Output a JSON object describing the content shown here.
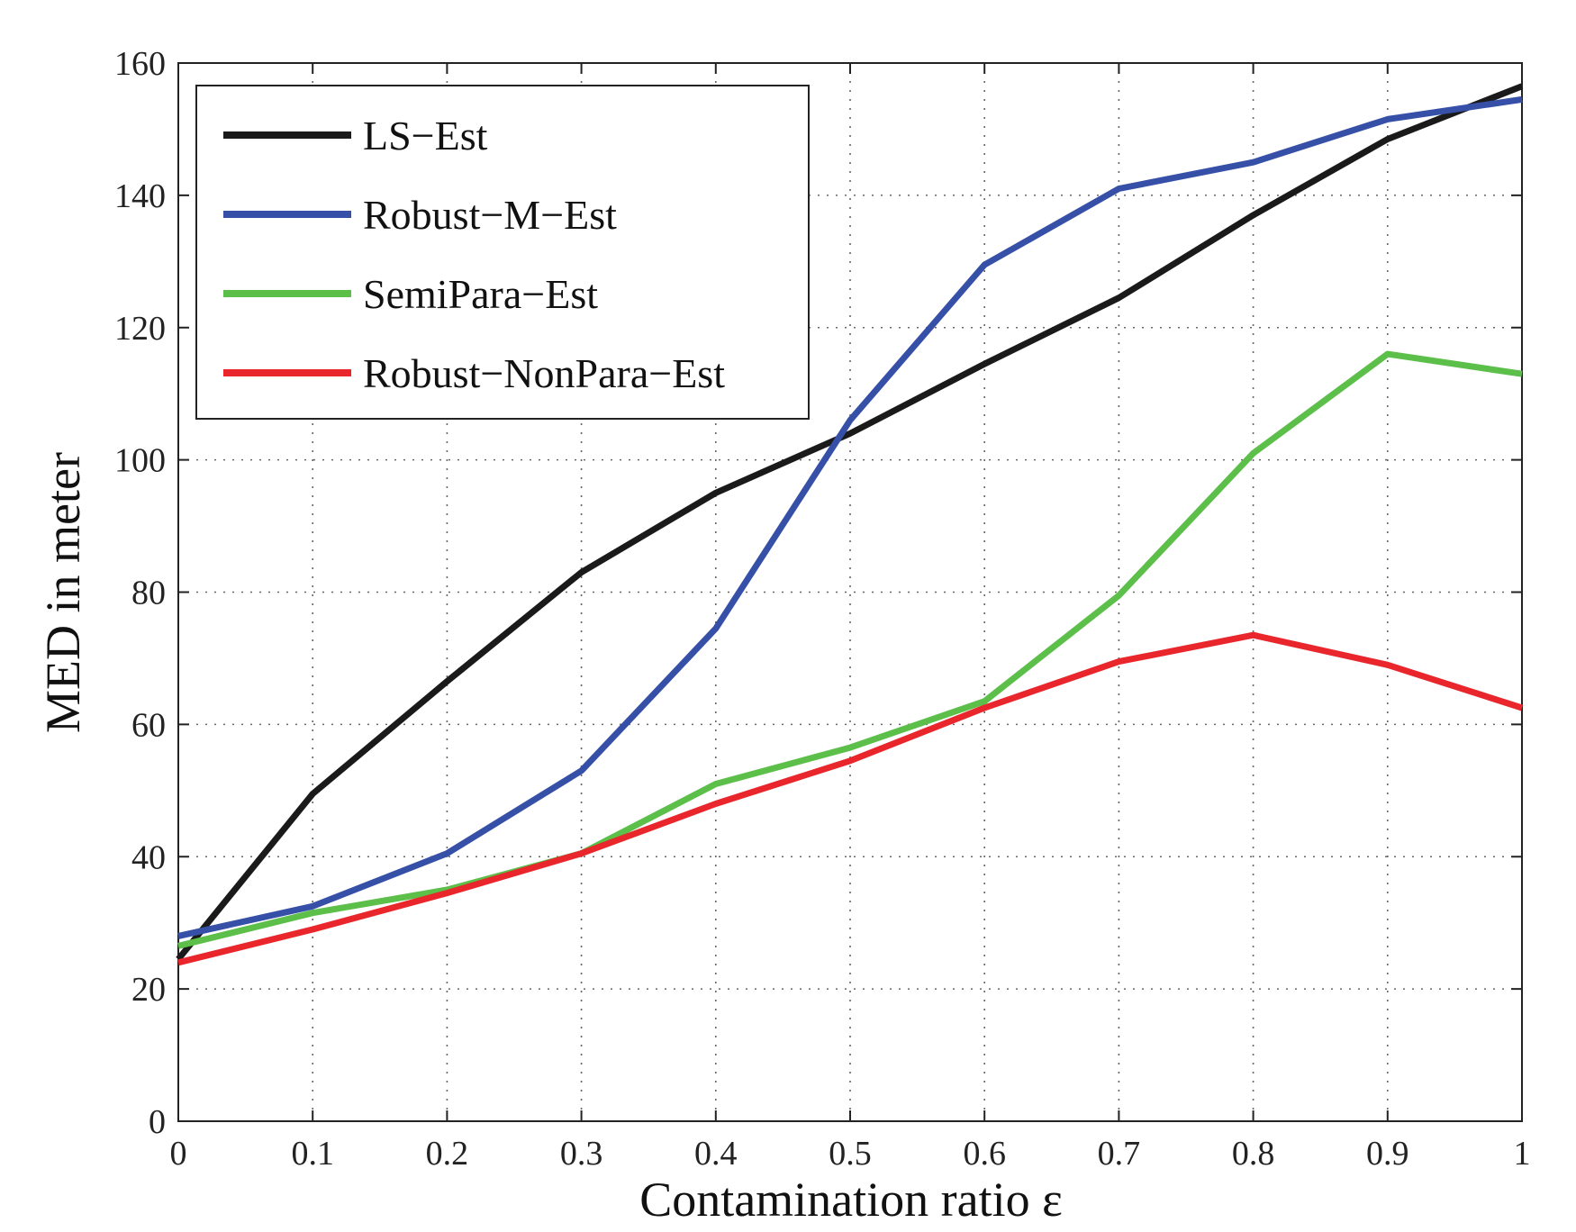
{
  "chart_data": {
    "type": "line",
    "title": "",
    "xlabel": "Contamination ratio ε",
    "ylabel": "MED in meter",
    "xlim": [
      0,
      1
    ],
    "ylim": [
      0,
      160
    ],
    "xticks": [
      0,
      0.1,
      0.2,
      0.3,
      0.4,
      0.5,
      0.6,
      0.7,
      0.8,
      0.9,
      1
    ],
    "xtick_labels": [
      "0",
      "0.1",
      "0.2",
      "0.3",
      "0.4",
      "0.5",
      "0.6",
      "0.7",
      "0.8",
      "0.9",
      "1"
    ],
    "yticks": [
      0,
      20,
      40,
      60,
      80,
      100,
      120,
      140,
      160
    ],
    "ytick_labels": [
      "0",
      "20",
      "40",
      "60",
      "80",
      "100",
      "120",
      "140",
      "160"
    ],
    "grid": true,
    "legend_position": "top-left",
    "x": [
      0,
      0.1,
      0.2,
      0.3,
      0.4,
      0.5,
      0.6,
      0.7,
      0.8,
      0.9,
      1
    ],
    "series": [
      {
        "name": "LS−Est",
        "color": "#1a1a1a",
        "values": [
          24.5,
          49.5,
          66.5,
          83,
          95,
          104,
          114.5,
          124.5,
          137,
          148.5,
          156.5
        ]
      },
      {
        "name": "Robust−M−Est",
        "color": "#3650a8",
        "values": [
          28,
          32.5,
          40.5,
          53,
          74.5,
          106,
          129.5,
          141,
          145,
          151.5,
          154.5
        ]
      },
      {
        "name": "SemiPara−Est",
        "color": "#5cbf4a",
        "values": [
          26.5,
          31.5,
          35,
          40.5,
          51,
          56.5,
          63.5,
          79.5,
          101,
          116,
          113
        ]
      },
      {
        "name": "Robust−NonPara−Est",
        "color": "#e8262b",
        "values": [
          24,
          29,
          34.5,
          40.5,
          48,
          54.5,
          62.5,
          69.5,
          73.5,
          69,
          62.5
        ]
      }
    ]
  }
}
